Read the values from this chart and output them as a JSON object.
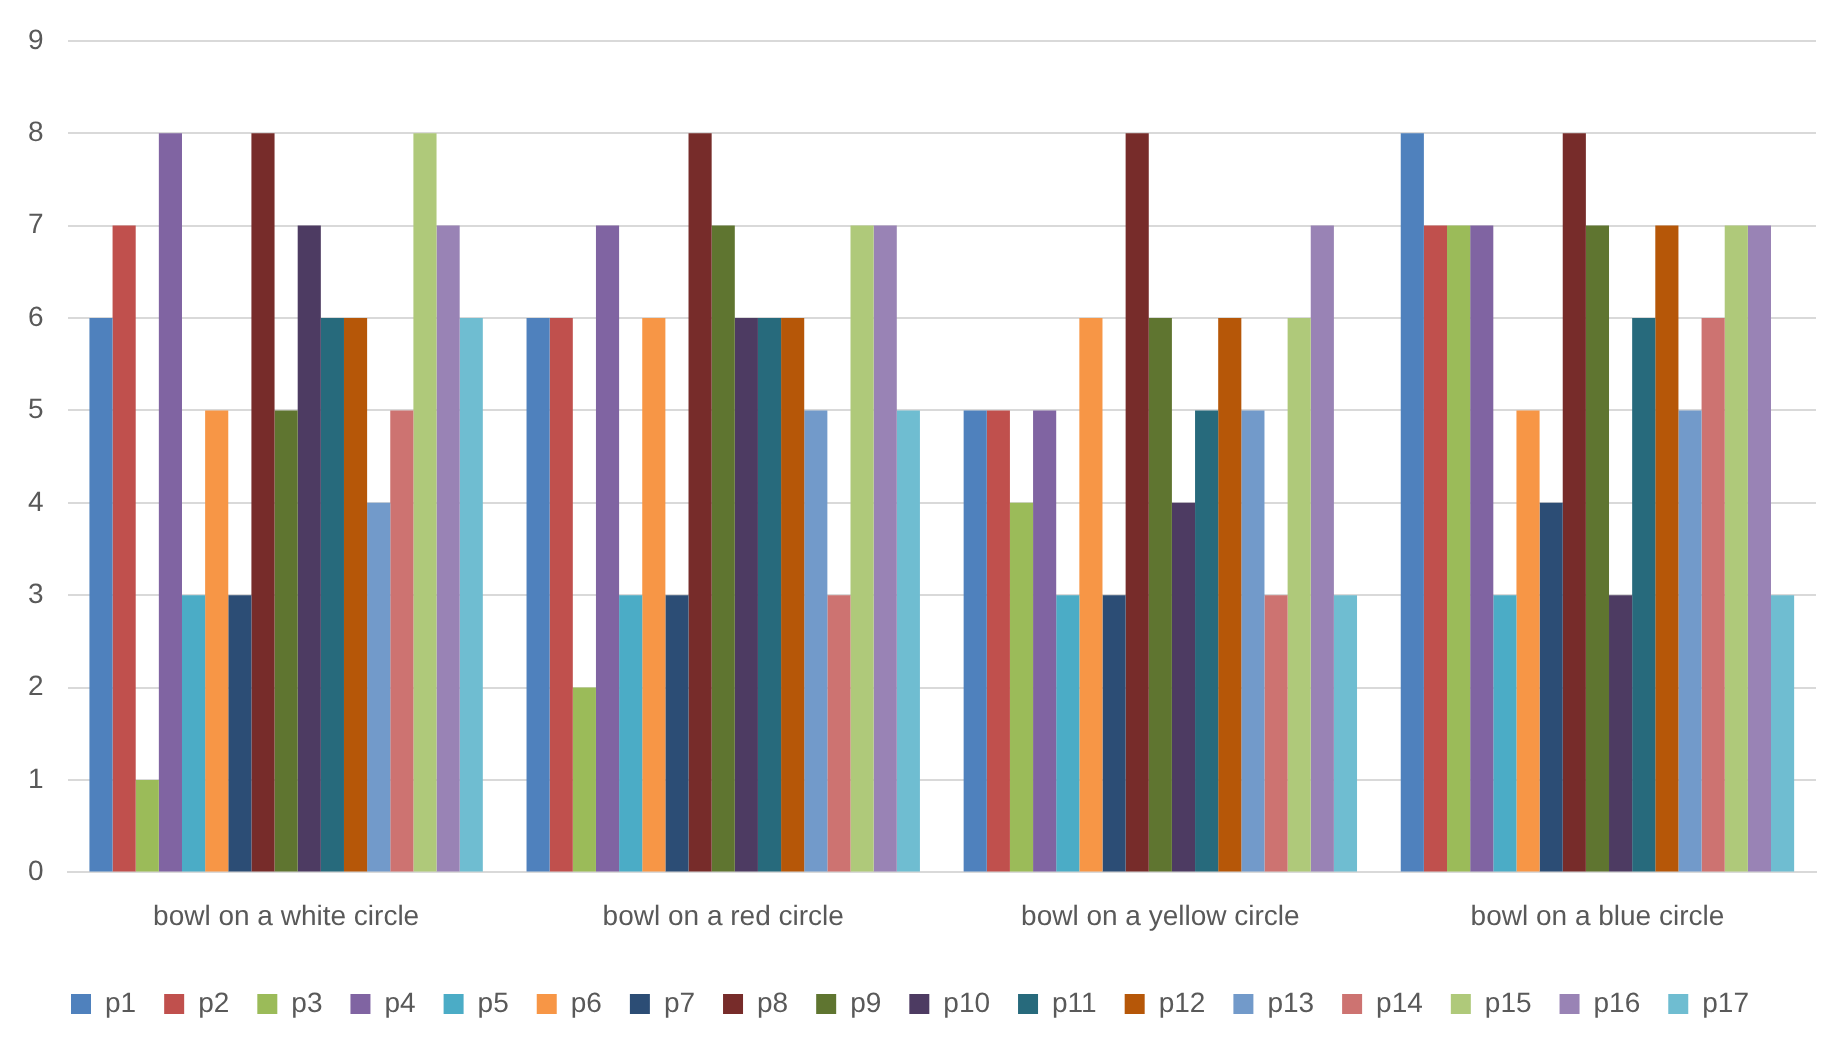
{
  "chart_data": {
    "type": "bar",
    "categories": [
      "bowl on a white circle",
      "bowl on a red circle",
      "bowl on a yellow circle",
      "bowl on a blue circle"
    ],
    "series": [
      {
        "name": "p1",
        "color": "#4f81bd",
        "values": [
          6,
          6,
          5,
          8
        ]
      },
      {
        "name": "p2",
        "color": "#c0504d",
        "values": [
          7,
          6,
          5,
          7
        ]
      },
      {
        "name": "p3",
        "color": "#9bbb59",
        "values": [
          1,
          2,
          4,
          7
        ]
      },
      {
        "name": "p4",
        "color": "#8064a2",
        "values": [
          8,
          7,
          5,
          7
        ]
      },
      {
        "name": "p5",
        "color": "#4bacc6",
        "values": [
          3,
          3,
          3,
          3
        ]
      },
      {
        "name": "p6",
        "color": "#f79646",
        "values": [
          5,
          6,
          6,
          5
        ]
      },
      {
        "name": "p7",
        "color": "#2c4d75",
        "values": [
          3,
          3,
          3,
          4
        ]
      },
      {
        "name": "p8",
        "color": "#772c2a",
        "values": [
          8,
          8,
          8,
          8
        ]
      },
      {
        "name": "p9",
        "color": "#5f7530",
        "values": [
          5,
          7,
          6,
          7
        ]
      },
      {
        "name": "p10",
        "color": "#4d3b62",
        "values": [
          7,
          6,
          4,
          3
        ]
      },
      {
        "name": "p11",
        "color": "#276a7c",
        "values": [
          6,
          6,
          5,
          6
        ]
      },
      {
        "name": "p12",
        "color": "#b65708",
        "values": [
          6,
          6,
          6,
          7
        ]
      },
      {
        "name": "p13",
        "color": "#729aca",
        "values": [
          4,
          5,
          5,
          5
        ]
      },
      {
        "name": "p14",
        "color": "#cd7371",
        "values": [
          5,
          3,
          3,
          6
        ]
      },
      {
        "name": "p15",
        "color": "#afc97a",
        "values": [
          8,
          7,
          6,
          7
        ]
      },
      {
        "name": "p16",
        "color": "#9983b5",
        "values": [
          7,
          7,
          7,
          7
        ]
      },
      {
        "name": "p17",
        "color": "#6fbdd1",
        "values": [
          6,
          5,
          3,
          3
        ]
      }
    ],
    "ylim": [
      0,
      9
    ],
    "yticks": [
      0,
      1,
      2,
      3,
      4,
      5,
      6,
      7,
      8,
      9
    ],
    "grid": "y",
    "legend": "bottom"
  }
}
